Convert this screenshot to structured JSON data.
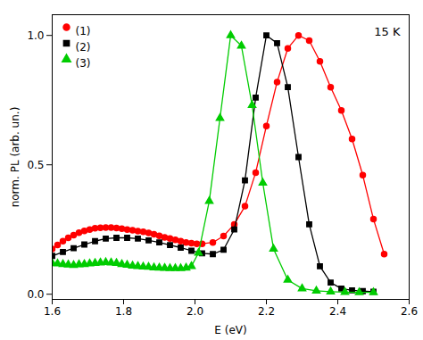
{
  "chart_data": {
    "type": "line",
    "annotation": "15 K",
    "xlabel": "E (eV)",
    "ylabel": "norm. PL (arb. un.)",
    "xlim": [
      1.6,
      2.6
    ],
    "ylim": [
      -0.02,
      1.08
    ],
    "xticks": [
      1.6,
      1.8,
      {
        "value": 2.0,
        "label": "2.0"
      },
      2.2,
      2.4,
      2.6
    ],
    "yticks": [
      {
        "value": 0.0,
        "label": "0.0"
      },
      0.5,
      {
        "value": 1.0,
        "label": "1.0"
      }
    ],
    "legend": "upper left",
    "series": [
      {
        "name": "(1)",
        "color": "#ff0000",
        "marker": "circle",
        "x": [
          1.6,
          1.615,
          1.63,
          1.645,
          1.66,
          1.675,
          1.69,
          1.705,
          1.72,
          1.735,
          1.75,
          1.765,
          1.78,
          1.795,
          1.81,
          1.825,
          1.84,
          1.855,
          1.87,
          1.885,
          1.9,
          1.915,
          1.93,
          1.945,
          1.96,
          1.975,
          1.99,
          2.005,
          2.02,
          2.05,
          2.08,
          2.11,
          2.14,
          2.17,
          2.2,
          2.23,
          2.26,
          2.29,
          2.32,
          2.35,
          2.38,
          2.41,
          2.44,
          2.47,
          2.5,
          2.53
        ],
        "values": [
          0.175,
          0.19,
          0.205,
          0.218,
          0.228,
          0.238,
          0.245,
          0.25,
          0.255,
          0.257,
          0.258,
          0.258,
          0.256,
          0.253,
          0.25,
          0.247,
          0.244,
          0.241,
          0.237,
          0.232,
          0.226,
          0.22,
          0.215,
          0.21,
          0.205,
          0.2,
          0.197,
          0.195,
          0.195,
          0.2,
          0.225,
          0.27,
          0.34,
          0.47,
          0.65,
          0.82,
          0.95,
          1.0,
          0.98,
          0.9,
          0.8,
          0.71,
          0.6,
          0.46,
          0.29,
          0.155
        ]
      },
      {
        "name": "(2)",
        "color": "#000000",
        "marker": "square",
        "x": [
          1.6,
          1.63,
          1.66,
          1.69,
          1.72,
          1.75,
          1.78,
          1.81,
          1.84,
          1.87,
          1.9,
          1.93,
          1.96,
          1.99,
          2.02,
          2.05,
          2.08,
          2.11,
          2.14,
          2.17,
          2.2,
          2.23,
          2.26,
          2.29,
          2.32,
          2.35,
          2.38,
          2.41,
          2.44,
          2.47,
          2.5
        ],
        "values": [
          0.148,
          0.163,
          0.178,
          0.192,
          0.205,
          0.215,
          0.218,
          0.218,
          0.215,
          0.208,
          0.2,
          0.19,
          0.18,
          0.168,
          0.158,
          0.155,
          0.172,
          0.25,
          0.44,
          0.76,
          1.0,
          0.97,
          0.8,
          0.53,
          0.27,
          0.108,
          0.045,
          0.022,
          0.015,
          0.012,
          0.01
        ]
      },
      {
        "name": "(3)",
        "color": "#00cc00",
        "marker": "triangle",
        "x": [
          1.6,
          1.615,
          1.63,
          1.645,
          1.66,
          1.675,
          1.69,
          1.705,
          1.72,
          1.735,
          1.75,
          1.765,
          1.78,
          1.795,
          1.81,
          1.825,
          1.84,
          1.855,
          1.87,
          1.885,
          1.9,
          1.915,
          1.93,
          1.945,
          1.96,
          1.975,
          1.99,
          2.01,
          2.04,
          2.07,
          2.1,
          2.13,
          2.16,
          2.19,
          2.22,
          2.26,
          2.3,
          2.34,
          2.38,
          2.42,
          2.46,
          2.5
        ],
        "values": [
          0.12,
          0.118,
          0.116,
          0.114,
          0.112,
          0.115,
          0.116,
          0.118,
          0.12,
          0.122,
          0.123,
          0.122,
          0.12,
          0.116,
          0.113,
          0.11,
          0.108,
          0.106,
          0.105,
          0.103,
          0.102,
          0.101,
          0.1,
          0.1,
          0.1,
          0.102,
          0.108,
          0.16,
          0.36,
          0.68,
          1.0,
          0.96,
          0.73,
          0.43,
          0.175,
          0.055,
          0.022,
          0.013,
          0.01,
          0.008,
          0.007,
          0.007
        ]
      }
    ]
  }
}
